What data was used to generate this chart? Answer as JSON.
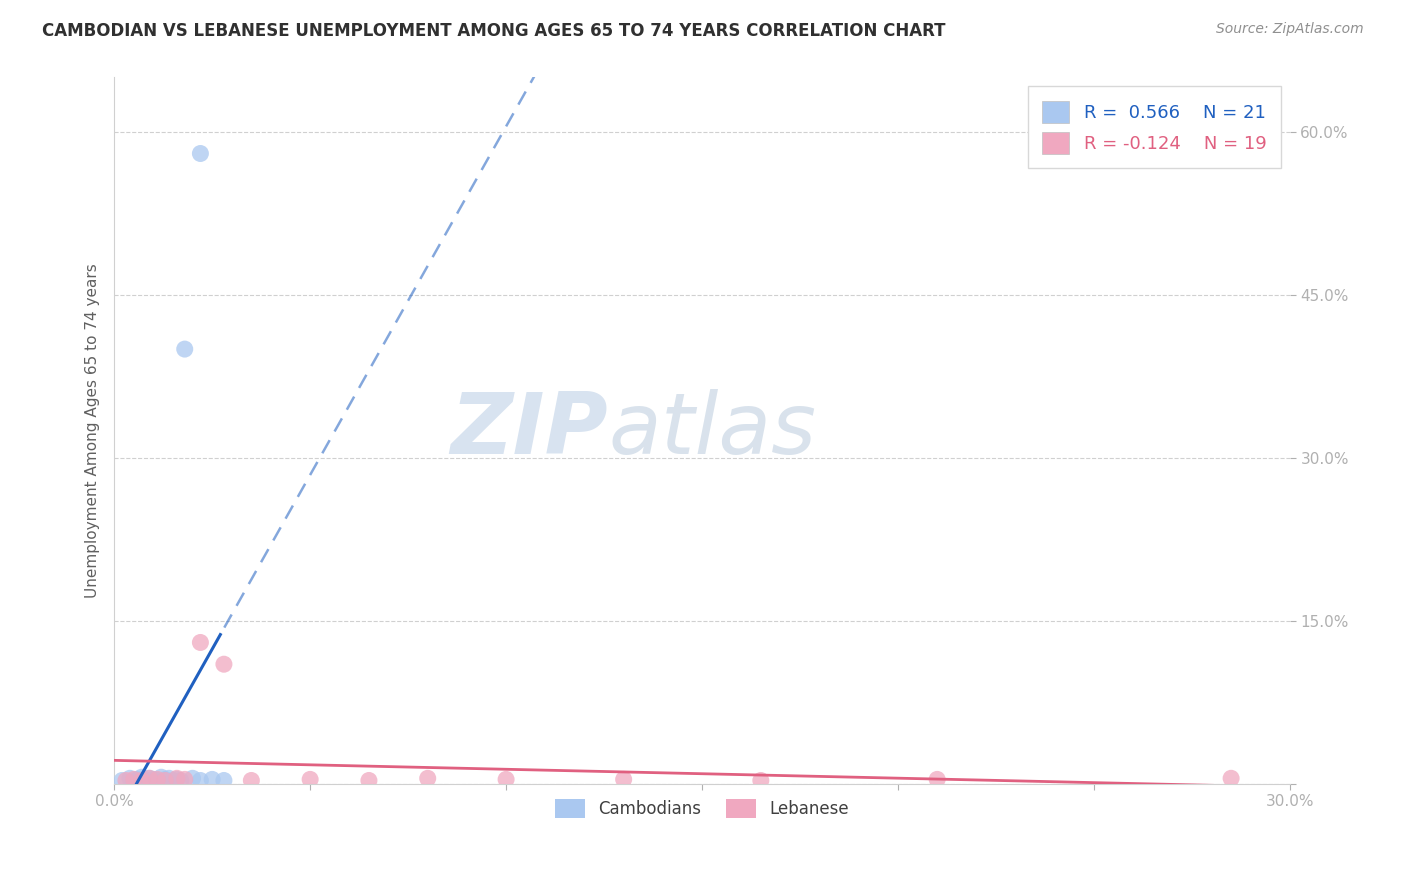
{
  "title": "CAMBODIAN VS LEBANESE UNEMPLOYMENT AMONG AGES 65 TO 74 YEARS CORRELATION CHART",
  "source_text": "Source: ZipAtlas.com",
  "ylabel": "Unemployment Among Ages 65 to 74 years",
  "xlim": [
    0.0,
    0.3
  ],
  "ylim": [
    0.0,
    0.65
  ],
  "xticks": [
    0.0,
    0.05,
    0.1,
    0.15,
    0.2,
    0.25,
    0.3
  ],
  "xticklabels": [
    "0.0%",
    "",
    "",
    "",
    "",
    "",
    "30.0%"
  ],
  "yticks": [
    0.0,
    0.15,
    0.3,
    0.45,
    0.6
  ],
  "yticklabels": [
    "",
    "15.0%",
    "30.0%",
    "45.0%",
    "60.0%"
  ],
  "cambodian_x": [
    0.002,
    0.004,
    0.005,
    0.006,
    0.007,
    0.008,
    0.009,
    0.01,
    0.011,
    0.012,
    0.013,
    0.014,
    0.015,
    0.016,
    0.017,
    0.018,
    0.02,
    0.022,
    0.025,
    0.022,
    0.028
  ],
  "cambodian_y": [
    0.003,
    0.005,
    0.002,
    0.004,
    0.006,
    0.003,
    0.005,
    0.004,
    0.003,
    0.006,
    0.004,
    0.005,
    0.003,
    0.004,
    0.003,
    0.4,
    0.005,
    0.003,
    0.004,
    0.58,
    0.003
  ],
  "lebanese_x": [
    0.003,
    0.005,
    0.007,
    0.009,
    0.011,
    0.013,
    0.016,
    0.018,
    0.022,
    0.028,
    0.035,
    0.05,
    0.065,
    0.08,
    0.1,
    0.13,
    0.165,
    0.21,
    0.285
  ],
  "lebanese_y": [
    0.003,
    0.004,
    0.003,
    0.005,
    0.004,
    0.003,
    0.005,
    0.004,
    0.13,
    0.11,
    0.003,
    0.004,
    0.003,
    0.005,
    0.004,
    0.004,
    0.003,
    0.004,
    0.005
  ],
  "cambodian_color": "#aac8f0",
  "lebanese_color": "#f0a8c0",
  "cambodian_line_color": "#2060c0",
  "lebanese_line_color": "#e06080",
  "R_cambodian": 0.566,
  "N_cambodian": 21,
  "R_lebanese": -0.124,
  "N_lebanese": 19,
  "watermark_zip": "ZIP",
  "watermark_atlas": "atlas",
  "background_color": "#ffffff",
  "grid_color": "#d0d0d0",
  "title_color": "#303030",
  "axis_label_color": "#606060",
  "tick_label_color": "#5080b0"
}
